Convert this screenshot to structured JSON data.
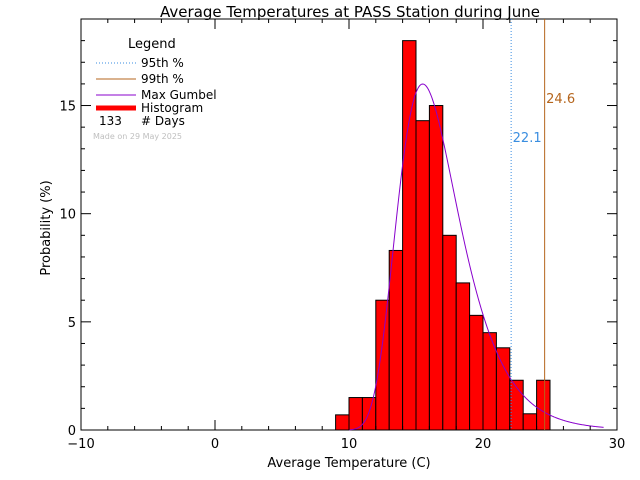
{
  "chart_data": {
    "type": "bar",
    "title": "Average Temperatures at PASS Station during June",
    "xlabel": "Average Temperature (C)",
    "ylabel": "Probability (%)",
    "xlim": [
      -10,
      30
    ],
    "ylim": [
      0,
      19
    ],
    "xticks": [
      -10,
      0,
      10,
      20,
      30
    ],
    "yticks": [
      0,
      5,
      10,
      15
    ],
    "xtick_labels": [
      "−10",
      "0",
      "10",
      "20",
      "30"
    ],
    "ytick_labels": [
      "0",
      "5",
      "10",
      "15"
    ],
    "bin_width": 1,
    "histogram": {
      "name": "Histogram",
      "bins": [
        {
          "x": 9,
          "y": 0.7
        },
        {
          "x": 10,
          "y": 1.5
        },
        {
          "x": 11,
          "y": 1.5
        },
        {
          "x": 12,
          "y": 6.0
        },
        {
          "x": 13,
          "y": 8.3
        },
        {
          "x": 14,
          "y": 18.0
        },
        {
          "x": 15,
          "y": 14.3
        },
        {
          "x": 16,
          "y": 15.0
        },
        {
          "x": 17,
          "y": 9.0
        },
        {
          "x": 18,
          "y": 6.8
        },
        {
          "x": 19,
          "y": 5.3
        },
        {
          "x": 20,
          "y": 4.5
        },
        {
          "x": 21,
          "y": 3.8
        },
        {
          "x": 22,
          "y": 2.3
        },
        {
          "x": 23,
          "y": 0.75
        },
        {
          "x": 24,
          "y": 2.3
        }
      ],
      "color": "#ff0000"
    },
    "gumbel": {
      "name": "Max Gumbel",
      "mu": 15.5,
      "beta": 2.3,
      "x_range": [
        10,
        29
      ],
      "color": "#8800cc"
    },
    "percentile_95": {
      "name": "95th %",
      "value": 22.1,
      "label": "22.1",
      "color": "#3a8ee0"
    },
    "percentile_99": {
      "name": "99th %",
      "value": 24.6,
      "label": "24.6",
      "color": "#b5651d"
    },
    "legend": {
      "title": "Legend",
      "placement": "top-left",
      "days_count": "133",
      "days_label": "# Days"
    },
    "annotation": "Made on 29 May 2025"
  }
}
